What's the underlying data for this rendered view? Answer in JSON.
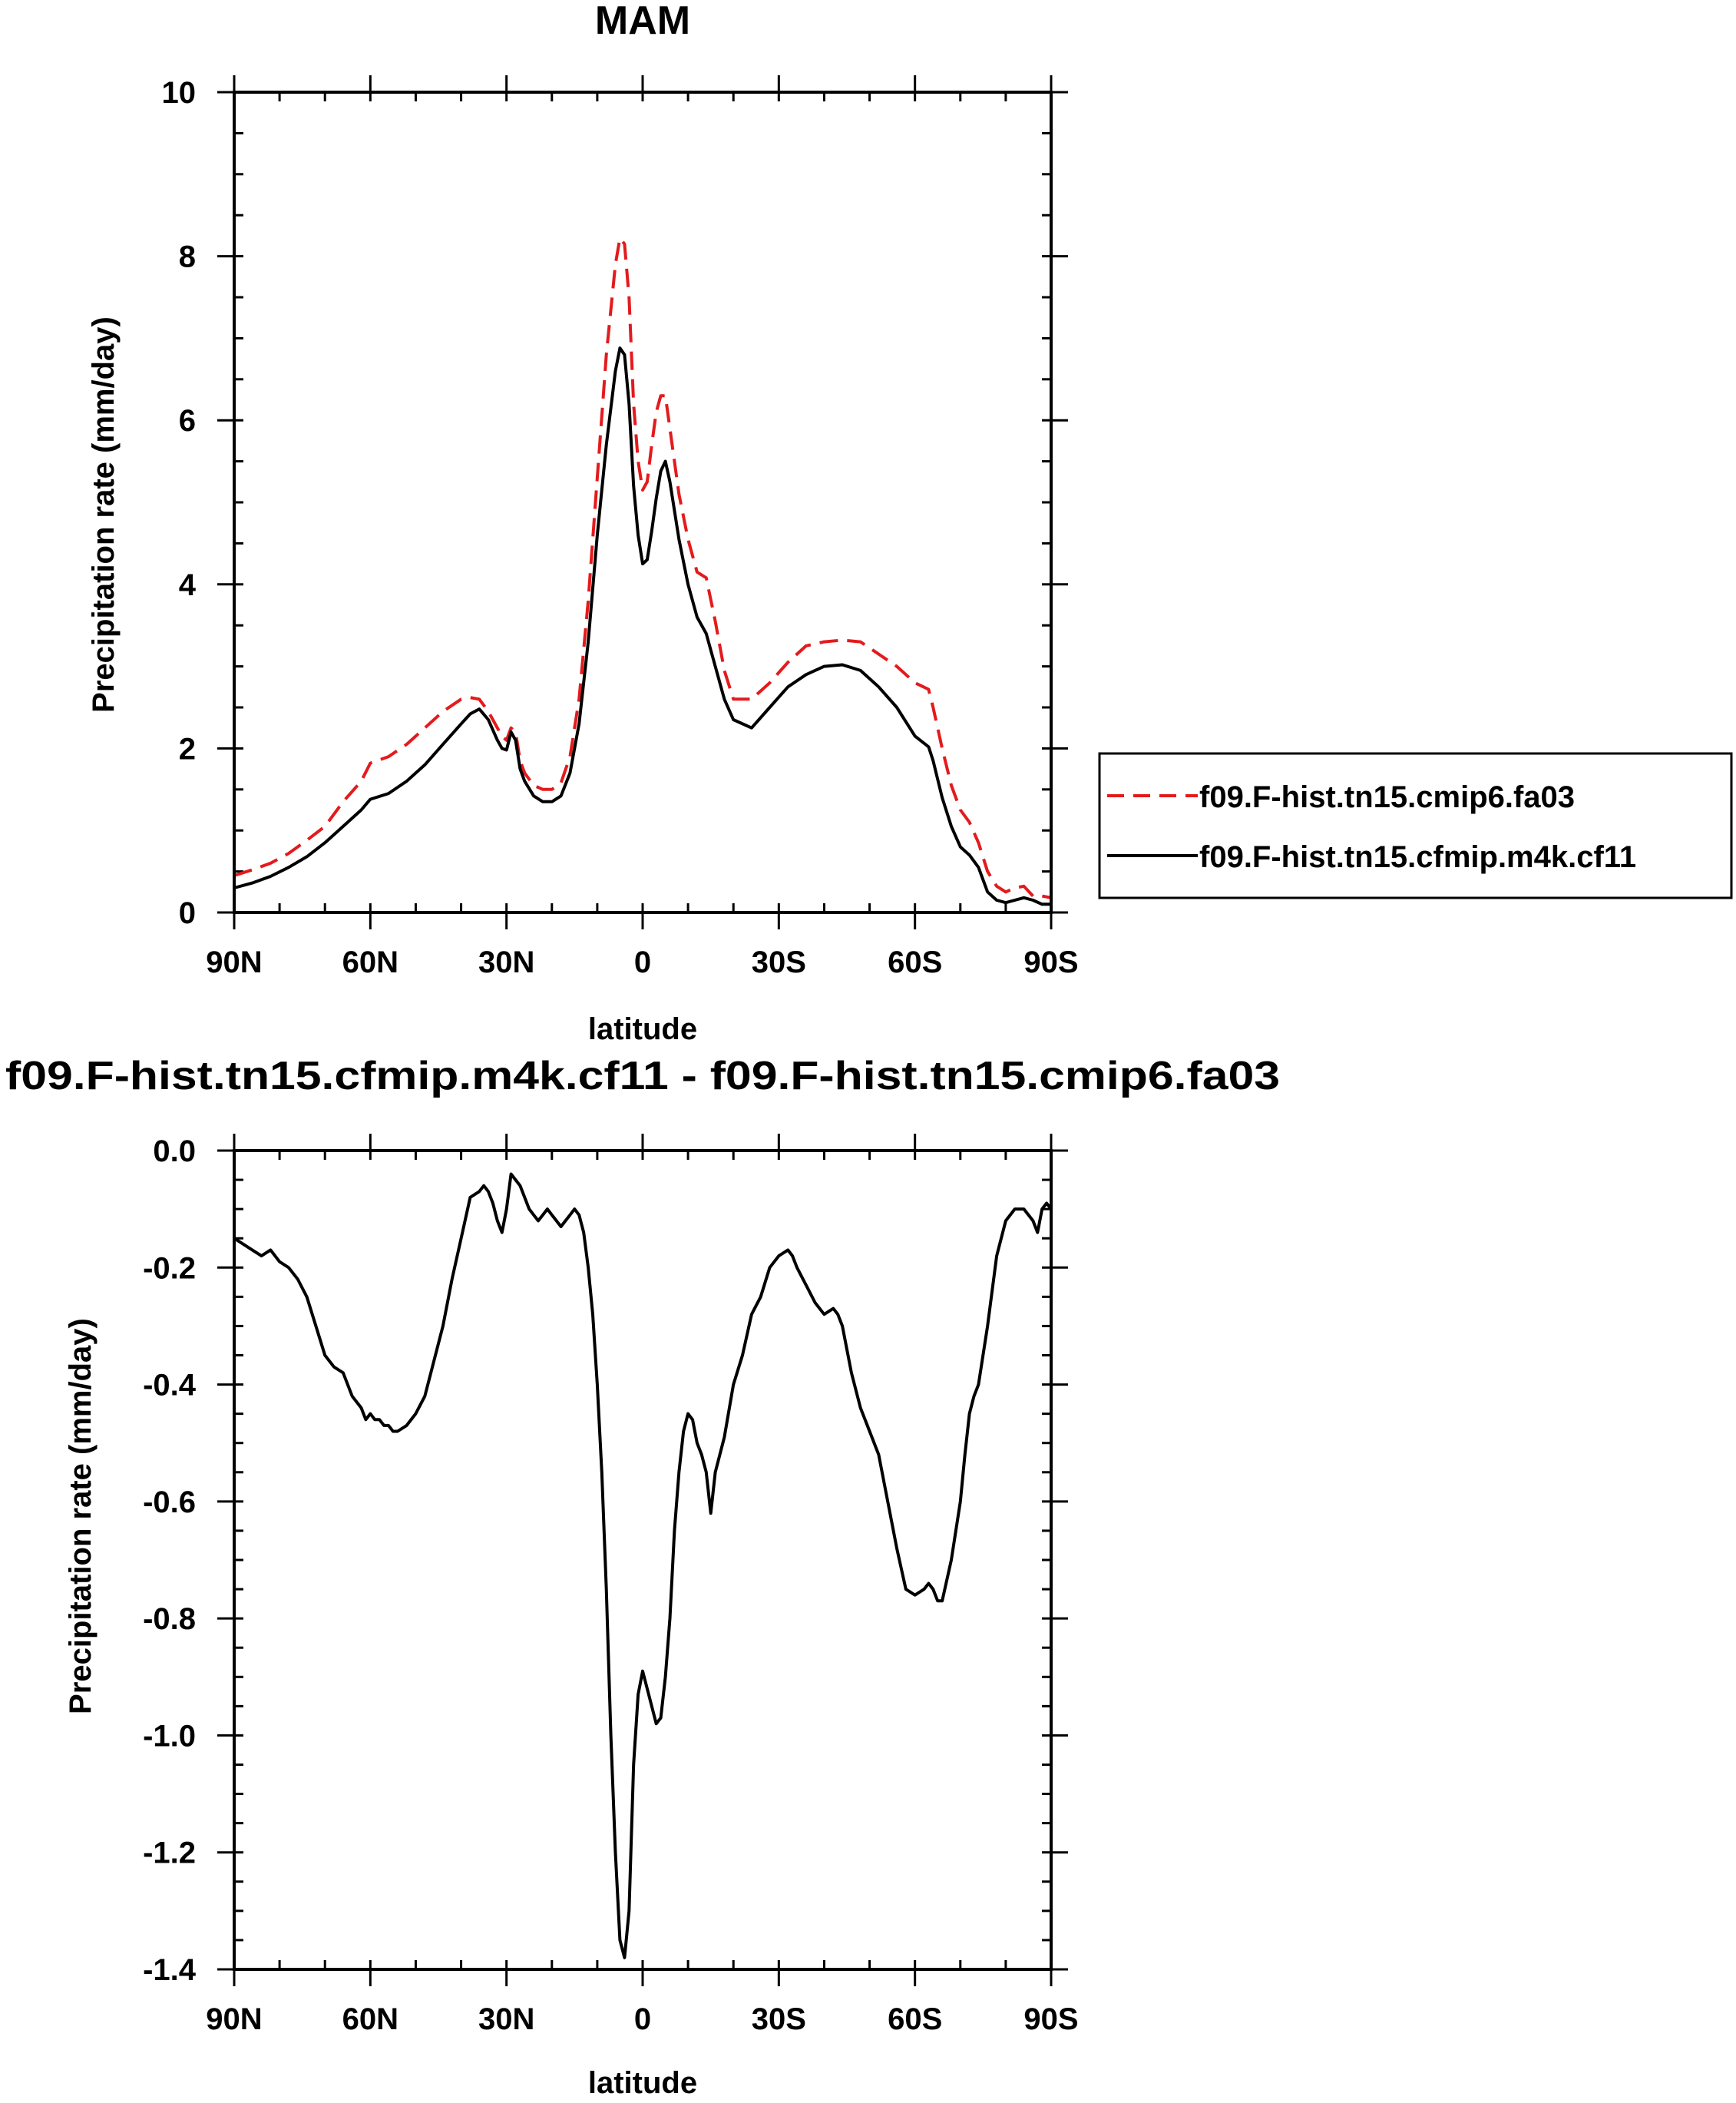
{
  "chart_data": [
    {
      "type": "line",
      "title": "MAM",
      "xlabel": "latitude",
      "ylabel": "Precipitation rate (mm/day)",
      "xlim": [
        90,
        -90
      ],
      "ylim": [
        0,
        10
      ],
      "x_ticks": [
        90,
        60,
        30,
        0,
        -30,
        -60,
        -90
      ],
      "x_tick_labels": [
        "90N",
        "60N",
        "30N",
        "0",
        "30S",
        "60S",
        "90S"
      ],
      "y_ticks": [
        0,
        2,
        4,
        6,
        8,
        10
      ],
      "y_tick_labels": [
        "0",
        "2",
        "4",
        "6",
        "8",
        "10"
      ],
      "legend_position": "right",
      "grid": false,
      "series": [
        {
          "name": "f09.F-hist.tn15.cmip6.fa03",
          "color": "#e41a1c",
          "style": "dashed",
          "x": [
            90,
            86,
            82,
            78,
            74,
            70,
            66,
            62,
            60,
            56,
            52,
            48,
            44,
            40,
            38,
            36,
            34,
            32,
            31,
            30,
            29,
            28,
            27,
            26,
            24,
            22,
            20,
            18,
            16,
            14,
            12,
            10,
            8,
            6,
            5,
            4,
            3,
            2,
            1,
            0,
            -1,
            -2,
            -3,
            -4,
            -5,
            -6,
            -8,
            -10,
            -12,
            -14,
            -16,
            -18,
            -20,
            -24,
            -28,
            -32,
            -36,
            -40,
            -44,
            -48,
            -52,
            -56,
            -60,
            -63,
            -64,
            -66,
            -68,
            -70,
            -72,
            -74,
            -76,
            -78,
            -80,
            -82,
            -84,
            -86,
            -88,
            -90
          ],
          "y": [
            0.45,
            0.52,
            0.6,
            0.72,
            0.88,
            1.05,
            1.35,
            1.6,
            1.82,
            1.9,
            2.05,
            2.25,
            2.45,
            2.6,
            2.62,
            2.6,
            2.45,
            2.25,
            2.15,
            2.1,
            2.25,
            2.2,
            1.85,
            1.7,
            1.55,
            1.5,
            1.5,
            1.58,
            1.9,
            2.6,
            3.8,
            5.3,
            6.8,
            7.9,
            8.22,
            8.15,
            7.5,
            6.2,
            5.5,
            5.15,
            5.25,
            5.7,
            6.1,
            6.3,
            6.3,
            5.9,
            5.1,
            4.55,
            4.15,
            4.08,
            3.55,
            2.95,
            2.6,
            2.6,
            2.8,
            3.05,
            3.25,
            3.3,
            3.32,
            3.3,
            3.15,
            3.0,
            2.8,
            2.72,
            2.5,
            2.0,
            1.55,
            1.25,
            1.1,
            0.85,
            0.5,
            0.32,
            0.25,
            0.3,
            0.32,
            0.2,
            0.2,
            0.18
          ]
        },
        {
          "name": "f09.F-hist.tn15.cfmip.m4k.cf11",
          "color": "#000000",
          "style": "solid",
          "x": [
            90,
            86,
            82,
            78,
            74,
            70,
            66,
            62,
            60,
            56,
            52,
            48,
            44,
            40,
            38,
            36,
            34,
            32,
            31,
            30,
            29,
            28,
            27,
            26,
            24,
            22,
            20,
            18,
            16,
            14,
            12,
            10,
            8,
            6,
            5,
            4,
            3,
            2,
            1,
            0,
            -1,
            -2,
            -3,
            -4,
            -5,
            -6,
            -8,
            -10,
            -12,
            -14,
            -16,
            -18,
            -20,
            -24,
            -28,
            -32,
            -36,
            -40,
            -44,
            -48,
            -52,
            -56,
            -60,
            -63,
            -64,
            -66,
            -68,
            -70,
            -72,
            -74,
            -76,
            -78,
            -80,
            -82,
            -84,
            -86,
            -88,
            -90
          ],
          "y": [
            0.3,
            0.36,
            0.44,
            0.55,
            0.68,
            0.85,
            1.05,
            1.25,
            1.38,
            1.45,
            1.6,
            1.8,
            2.05,
            2.3,
            2.42,
            2.48,
            2.35,
            2.1,
            2.0,
            1.98,
            2.2,
            2.1,
            1.75,
            1.6,
            1.42,
            1.35,
            1.35,
            1.42,
            1.7,
            2.3,
            3.3,
            4.6,
            5.7,
            6.6,
            6.88,
            6.8,
            6.2,
            5.2,
            4.6,
            4.25,
            4.3,
            4.65,
            5.05,
            5.38,
            5.5,
            5.25,
            4.55,
            4.0,
            3.6,
            3.4,
            3.0,
            2.6,
            2.35,
            2.25,
            2.5,
            2.75,
            2.9,
            3.0,
            3.02,
            2.95,
            2.75,
            2.5,
            2.15,
            2.02,
            1.85,
            1.4,
            1.05,
            0.8,
            0.7,
            0.55,
            0.25,
            0.15,
            0.12,
            0.15,
            0.18,
            0.15,
            0.1,
            0.1
          ]
        }
      ]
    },
    {
      "type": "line",
      "title": "f09.F-hist.tn15.cfmip.m4k.cf11 - f09.F-hist.tn15.cmip6.fa03",
      "xlabel": "latitude",
      "ylabel": "Precipitation rate (mm/day)",
      "xlim": [
        90,
        -90
      ],
      "ylim": [
        -1.4,
        0.0
      ],
      "x_ticks": [
        90,
        60,
        30,
        0,
        -30,
        -60,
        -90
      ],
      "x_tick_labels": [
        "90N",
        "60N",
        "30N",
        "0",
        "30S",
        "60S",
        "90S"
      ],
      "y_ticks": [
        0.0,
        -0.2,
        -0.4,
        -0.6,
        -0.8,
        -1.0,
        -1.2,
        -1.4
      ],
      "y_tick_labels": [
        "0.0",
        "-0.2",
        "-0.4",
        "-0.6",
        "-0.8",
        "-1.0",
        "-1.2",
        "-1.4"
      ],
      "grid": false,
      "series": [
        {
          "color": "#000000",
          "style": "solid",
          "x": [
            90,
            88,
            86,
            84,
            82,
            80,
            78,
            76,
            74,
            72,
            70,
            68,
            66,
            64,
            62,
            61,
            60,
            59,
            58,
            57,
            56,
            55,
            54,
            52,
            50,
            48,
            46,
            44,
            42,
            40,
            38,
            36,
            35,
            34,
            33,
            32,
            31,
            30,
            29,
            28,
            27,
            26,
            25,
            24,
            23,
            22,
            21,
            20,
            19,
            18,
            17,
            16,
            15,
            14,
            13,
            12,
            11,
            10,
            9,
            8,
            7,
            6,
            5,
            4,
            3,
            2,
            1,
            0,
            -1,
            -2,
            -3,
            -4,
            -5,
            -6,
            -7,
            -8,
            -9,
            -10,
            -11,
            -12,
            -13,
            -14,
            -15,
            -16,
            -18,
            -20,
            -22,
            -24,
            -26,
            -28,
            -30,
            -32,
            -33,
            -34,
            -36,
            -38,
            -40,
            -42,
            -43,
            -44,
            -46,
            -48,
            -50,
            -52,
            -54,
            -56,
            -58,
            -60,
            -62,
            -63,
            -64,
            -65,
            -66,
            -68,
            -70,
            -71,
            -72,
            -73,
            -74,
            -76,
            -78,
            -80,
            -82,
            -84,
            -86,
            -87,
            -88,
            -89,
            -90
          ],
          "y": [
            -0.15,
            -0.16,
            -0.17,
            -0.18,
            -0.17,
            -0.19,
            -0.2,
            -0.22,
            -0.25,
            -0.3,
            -0.35,
            -0.37,
            -0.38,
            -0.42,
            -0.44,
            -0.46,
            -0.45,
            -0.46,
            -0.46,
            -0.47,
            -0.47,
            -0.48,
            -0.48,
            -0.47,
            -0.45,
            -0.42,
            -0.36,
            -0.3,
            -0.22,
            -0.15,
            -0.08,
            -0.07,
            -0.06,
            -0.07,
            -0.09,
            -0.12,
            -0.14,
            -0.1,
            -0.04,
            -0.05,
            -0.06,
            -0.08,
            -0.1,
            -0.11,
            -0.12,
            -0.11,
            -0.1,
            -0.11,
            -0.12,
            -0.13,
            -0.12,
            -0.11,
            -0.1,
            -0.11,
            -0.14,
            -0.2,
            -0.28,
            -0.4,
            -0.55,
            -0.75,
            -1.0,
            -1.2,
            -1.35,
            -1.38,
            -1.3,
            -1.05,
            -0.93,
            -0.89,
            -0.92,
            -0.95,
            -0.98,
            -0.97,
            -0.9,
            -0.8,
            -0.65,
            -0.55,
            -0.48,
            -0.45,
            -0.46,
            -0.5,
            -0.52,
            -0.55,
            -0.62,
            -0.55,
            -0.49,
            -0.4,
            -0.35,
            -0.28,
            -0.25,
            -0.2,
            -0.18,
            -0.17,
            -0.18,
            -0.2,
            -0.23,
            -0.26,
            -0.28,
            -0.27,
            -0.28,
            -0.3,
            -0.38,
            -0.44,
            -0.48,
            -0.52,
            -0.6,
            -0.68,
            -0.75,
            -0.76,
            -0.75,
            -0.74,
            -0.75,
            -0.77,
            -0.77,
            -0.7,
            -0.6,
            -0.52,
            -0.45,
            -0.42,
            -0.4,
            -0.3,
            -0.18,
            -0.12,
            -0.1,
            -0.1,
            -0.12,
            -0.14,
            -0.1,
            -0.09,
            -0.1
          ]
        }
      ]
    }
  ]
}
